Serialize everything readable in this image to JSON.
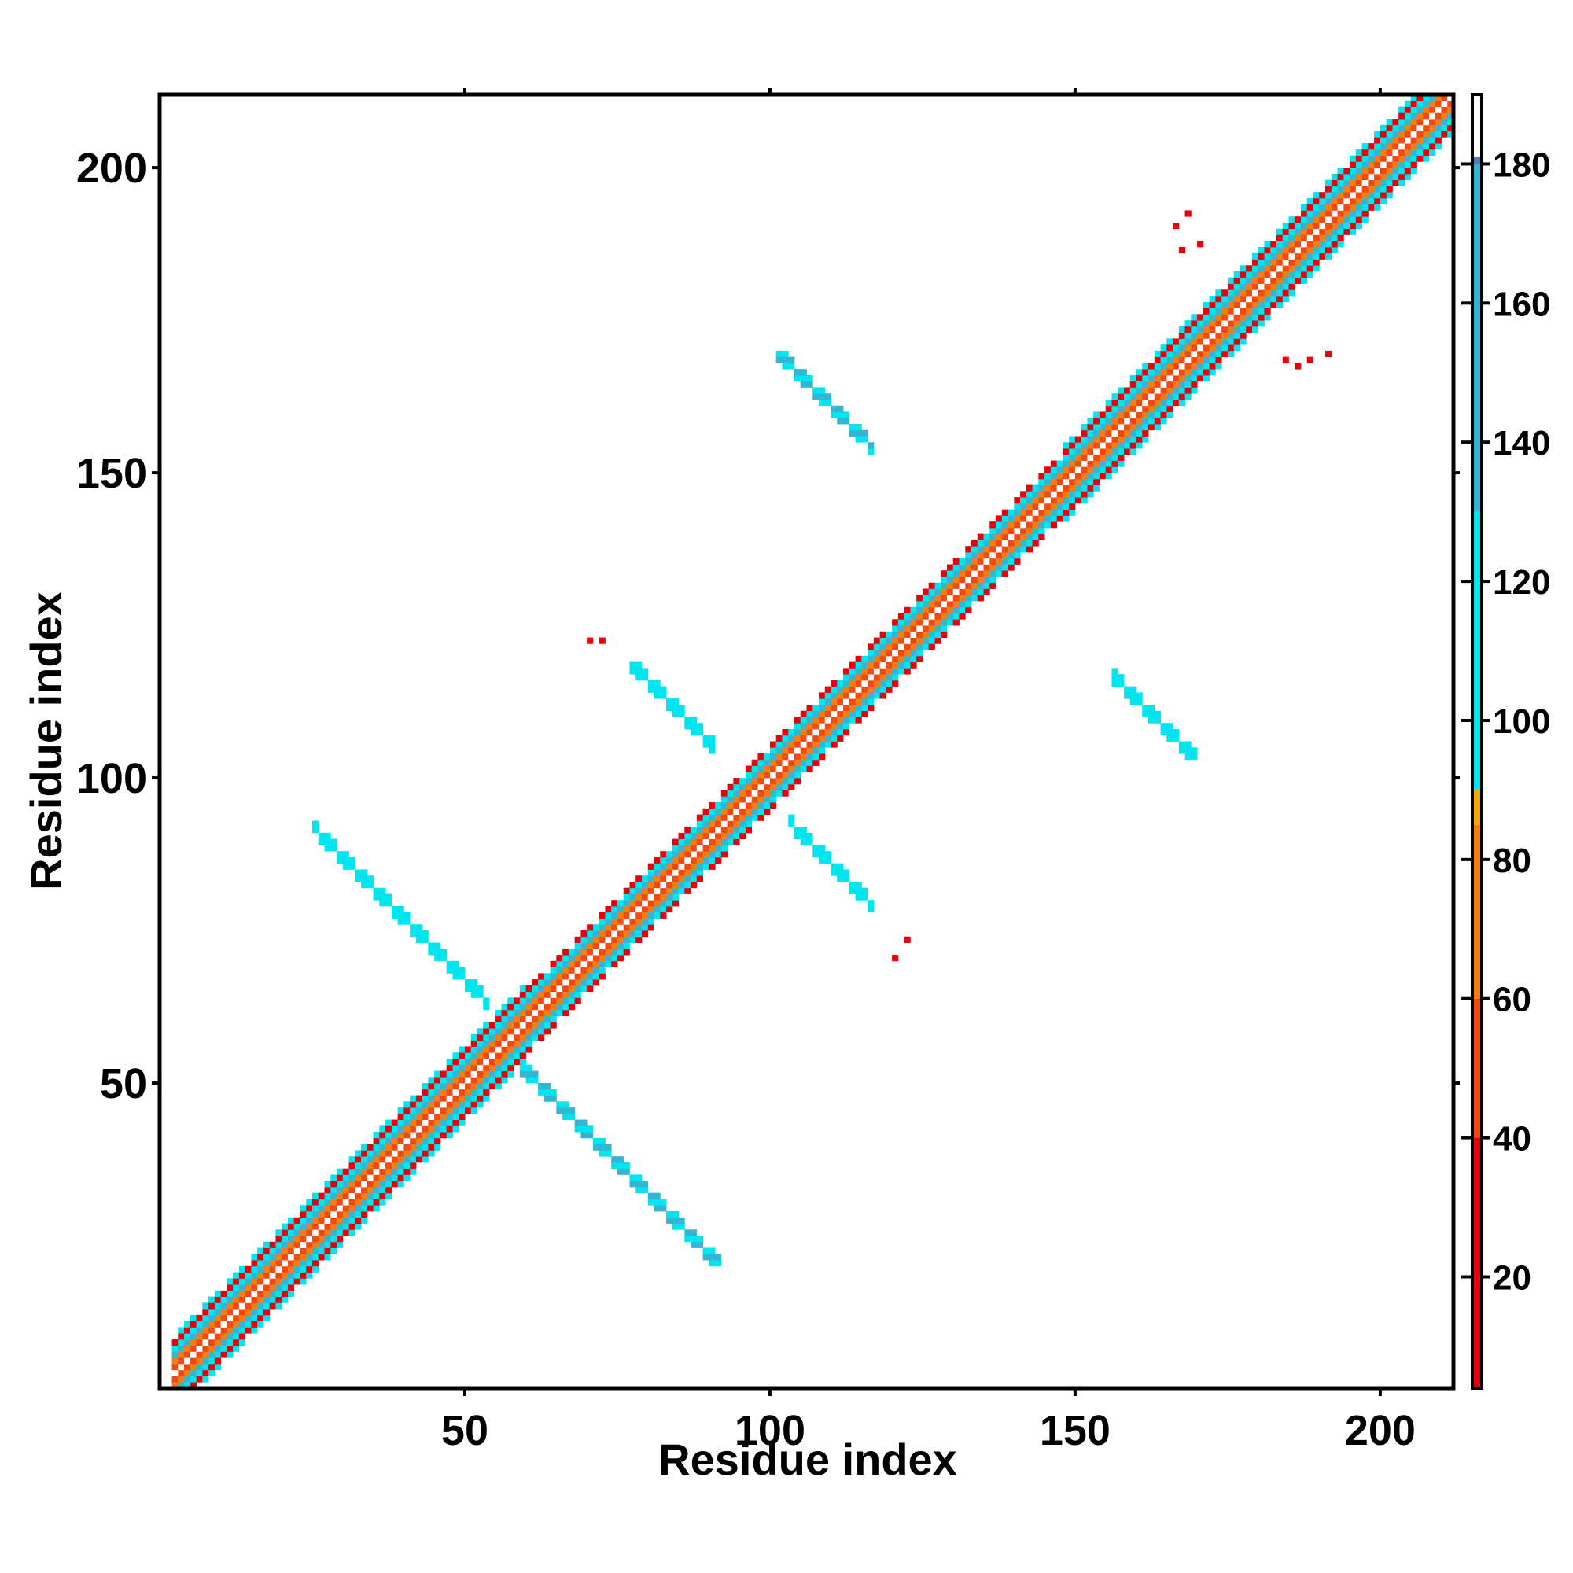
{
  "chart_data": {
    "type": "heatmap",
    "title": "",
    "xlabel": "Residue index",
    "ylabel": "Residue index",
    "xlim": [
      0,
      212
    ],
    "ylim": [
      0,
      212
    ],
    "x_ticks": [
      50,
      100,
      150,
      200
    ],
    "y_ticks": [
      50,
      100,
      150,
      200
    ],
    "grid": false,
    "matrix_symmetric": true,
    "n_residues": 212,
    "colorbar": {
      "ticks": [
        20,
        40,
        60,
        80,
        100,
        120,
        140,
        160,
        180
      ],
      "range": [
        4,
        190
      ],
      "stops": [
        {
          "value": 4,
          "color": "#e8000b"
        },
        {
          "value": 40,
          "color": "#f04a12"
        },
        {
          "value": 60,
          "color": "#f57d14"
        },
        {
          "value": 85,
          "color": "#f5a600"
        },
        {
          "value": 90,
          "color": "#00e5ee"
        },
        {
          "value": 130,
          "color": "#33b6d4"
        },
        {
          "value": 180,
          "color": "#4f7bb5"
        },
        {
          "value": 181,
          "color": "#ffffff"
        },
        {
          "value": 190,
          "color": "#ffffff"
        }
      ]
    },
    "diagonal_band": {
      "segments": [
        {
          "start": 2,
          "end": 60,
          "half_width": 6
        },
        {
          "start": 60,
          "end": 95,
          "half_width": 5
        },
        {
          "start": 95,
          "end": 148,
          "half_width": 5
        },
        {
          "start": 148,
          "end": 175,
          "half_width": 6
        },
        {
          "start": 175,
          "end": 212,
          "half_width": 6
        }
      ],
      "value_profile": [
        {
          "offset": 0,
          "value": 186
        },
        {
          "offset": 1,
          "value": 60
        },
        {
          "offset": 2,
          "value": 80
        },
        {
          "offset": 3,
          "value": 140
        },
        {
          "offset": 4,
          "value": 110
        },
        {
          "offset": 5,
          "value": 30
        },
        {
          "offset": 6,
          "value": 95
        }
      ]
    },
    "antidiagonal_contacts": [
      {
        "i_range": [
          25,
          53
        ],
        "j_start": 91,
        "value": 115
      },
      {
        "i_range": [
          58,
          91
        ],
        "j_start": 53,
        "value": 120
      },
      {
        "i_range": [
          77,
          90
        ],
        "j_start": 118,
        "value": 110
      },
      {
        "i_range": [
          103,
          116
        ],
        "j_start": 92,
        "value": 105
      },
      {
        "i_range": [
          101,
          116
        ],
        "j_start": 169,
        "value": 118
      },
      {
        "i_range": [
          156,
          169
        ],
        "j_start": 116,
        "value": 112
      }
    ],
    "isolated_points": [
      {
        "i": 70,
        "j": 122,
        "value": 12
      },
      {
        "i": 72,
        "j": 122,
        "value": 12
      },
      {
        "i": 120,
        "j": 70,
        "value": 12
      },
      {
        "i": 122,
        "j": 73,
        "value": 12
      },
      {
        "i": 166,
        "j": 190,
        "value": 12
      },
      {
        "i": 167,
        "j": 186,
        "value": 12
      },
      {
        "i": 168,
        "j": 192,
        "value": 12
      },
      {
        "i": 170,
        "j": 187,
        "value": 12
      },
      {
        "i": 184,
        "j": 168,
        "value": 12
      },
      {
        "i": 186,
        "j": 167,
        "value": 12
      },
      {
        "i": 188,
        "j": 168,
        "value": 12
      },
      {
        "i": 191,
        "j": 169,
        "value": 12
      }
    ]
  }
}
